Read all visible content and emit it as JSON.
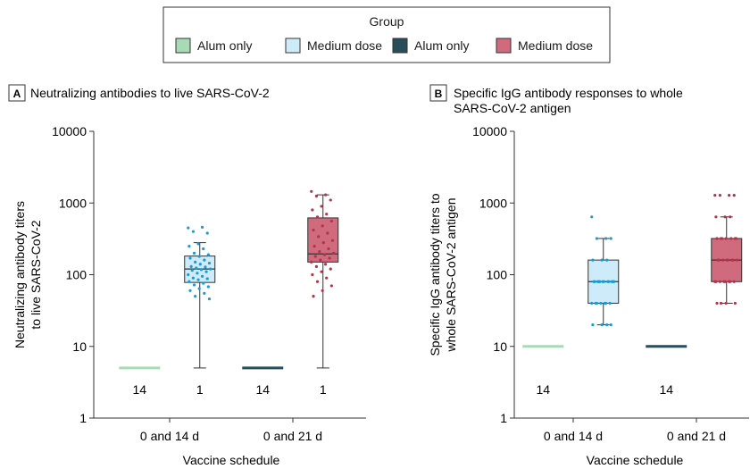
{
  "legend": {
    "title": "Group",
    "items": [
      {
        "label": "Alum only",
        "color": "#a8dab5"
      },
      {
        "label": "Medium dose",
        "color": "#cdebf8"
      },
      {
        "label": "Alum only",
        "color": "#2a4d5c"
      },
      {
        "label": "Medium dose",
        "color": "#cf6b7c"
      }
    ]
  },
  "chart_data": [
    {
      "type": "box",
      "panel_letter": "A",
      "title": "Neutralizing antibodies to live SARS-CoV-2",
      "xlabel": "Vaccine schedule",
      "ylabel": [
        "Neutralizing antibody titers",
        "to live SARS-CoV-2"
      ],
      "yscale": "log",
      "ylim": [
        1,
        10000
      ],
      "yticks": [
        1,
        10,
        100,
        1000,
        10000
      ],
      "ytick_labels": [
        "1",
        "10",
        "100",
        "1000",
        "10000"
      ],
      "categories": [
        "0 and 14 d",
        "0 and 21 d"
      ],
      "series": [
        {
          "name": "Alum only",
          "color": "#a8dab5",
          "category": "0 and 14 d",
          "offset": -0.5,
          "type": "line",
          "value": 5,
          "count_label": "14"
        },
        {
          "name": "Medium dose",
          "color": "#cdebf8",
          "stroke": "#1a9ad6",
          "category": "0 and 14 d",
          "offset": 0.5,
          "type": "box",
          "whisker_low": 5,
          "q1": 78,
          "median": 120,
          "q3": 182,
          "whisker_high": 280,
          "count_label": "1",
          "points": [
            450,
            460,
            400,
            380,
            270,
            250,
            230,
            200,
            190,
            180,
            170,
            160,
            150,
            145,
            140,
            130,
            128,
            124,
            120,
            118,
            115,
            110,
            105,
            100,
            95,
            90,
            88,
            85,
            80,
            76,
            72,
            68,
            64,
            60,
            55,
            50,
            46
          ]
        },
        {
          "name": "Alum only",
          "color": "#2a4d5c",
          "category": "0 and 21 d",
          "offset": -0.5,
          "type": "line",
          "value": 5,
          "count_label": "14"
        },
        {
          "name": "Medium dose",
          "color": "#cf6b7c",
          "stroke": "#b3344a",
          "category": "0 and 21 d",
          "offset": 0.5,
          "type": "box",
          "whisker_low": 5,
          "q1": 150,
          "median": 195,
          "q3": 620,
          "whisker_high": 1300,
          "count_label": "1",
          "points": [
            1450,
            1300,
            1250,
            1100,
            900,
            800,
            700,
            640,
            560,
            480,
            420,
            380,
            340,
            300,
            280,
            250,
            230,
            210,
            200,
            190,
            180,
            170,
            160,
            150,
            140,
            130,
            120,
            110,
            100,
            90,
            80,
            70,
            60,
            50
          ]
        }
      ]
    },
    {
      "type": "box",
      "panel_letter": "B",
      "title": "Specific IgG antibody responses to whole SARS-CoV-2 antigen",
      "title_lines": [
        "Specific IgG antibody responses to whole",
        "SARS-CoV-2 antigen"
      ],
      "xlabel": "Vaccine schedule",
      "ylabel": [
        "Specific IgG antibody titers to",
        "whole SARS-CoV-2 antigen"
      ],
      "yscale": "log",
      "ylim": [
        1,
        10000
      ],
      "yticks": [
        1,
        10,
        100,
        1000,
        10000
      ],
      "ytick_labels": [
        "1",
        "10",
        "100",
        "1000",
        "10000"
      ],
      "categories": [
        "0 and 14 d",
        "0 and 21 d"
      ],
      "series": [
        {
          "name": "Alum only",
          "color": "#a8dab5",
          "category": "0 and 14 d",
          "offset": -0.5,
          "type": "line",
          "value": 10,
          "count_label": "14"
        },
        {
          "name": "Medium dose",
          "color": "#cdebf8",
          "stroke": "#1a9ad6",
          "category": "0 and 14 d",
          "offset": 0.5,
          "type": "box",
          "whisker_low": 20,
          "q1": 40,
          "median": 80,
          "q3": 160,
          "whisker_high": 320,
          "points": [
            640,
            320,
            320,
            320,
            160,
            160,
            160,
            80,
            80,
            80,
            80,
            80,
            80,
            80,
            80,
            80,
            80,
            80,
            80,
            40,
            40,
            40,
            40,
            40,
            40,
            40,
            20,
            20,
            20,
            20
          ]
        },
        {
          "name": "Alum only",
          "color": "#2a4d5c",
          "category": "0 and 21 d",
          "offset": -0.5,
          "type": "line",
          "value": 10,
          "count_label": "14"
        },
        {
          "name": "Medium dose",
          "color": "#cf6b7c",
          "stroke": "#b3344a",
          "category": "0 and 21 d",
          "offset": 0.5,
          "type": "box",
          "whisker_low": 40,
          "q1": 80,
          "median": 160,
          "q3": 320,
          "whisker_high": 640,
          "points": [
            1280,
            1280,
            1280,
            1280,
            640,
            640,
            640,
            320,
            320,
            320,
            320,
            320,
            320,
            320,
            160,
            160,
            160,
            160,
            160,
            160,
            160,
            160,
            80,
            80,
            80,
            80,
            80,
            80,
            80,
            80,
            40,
            40,
            40,
            40
          ]
        }
      ]
    }
  ]
}
